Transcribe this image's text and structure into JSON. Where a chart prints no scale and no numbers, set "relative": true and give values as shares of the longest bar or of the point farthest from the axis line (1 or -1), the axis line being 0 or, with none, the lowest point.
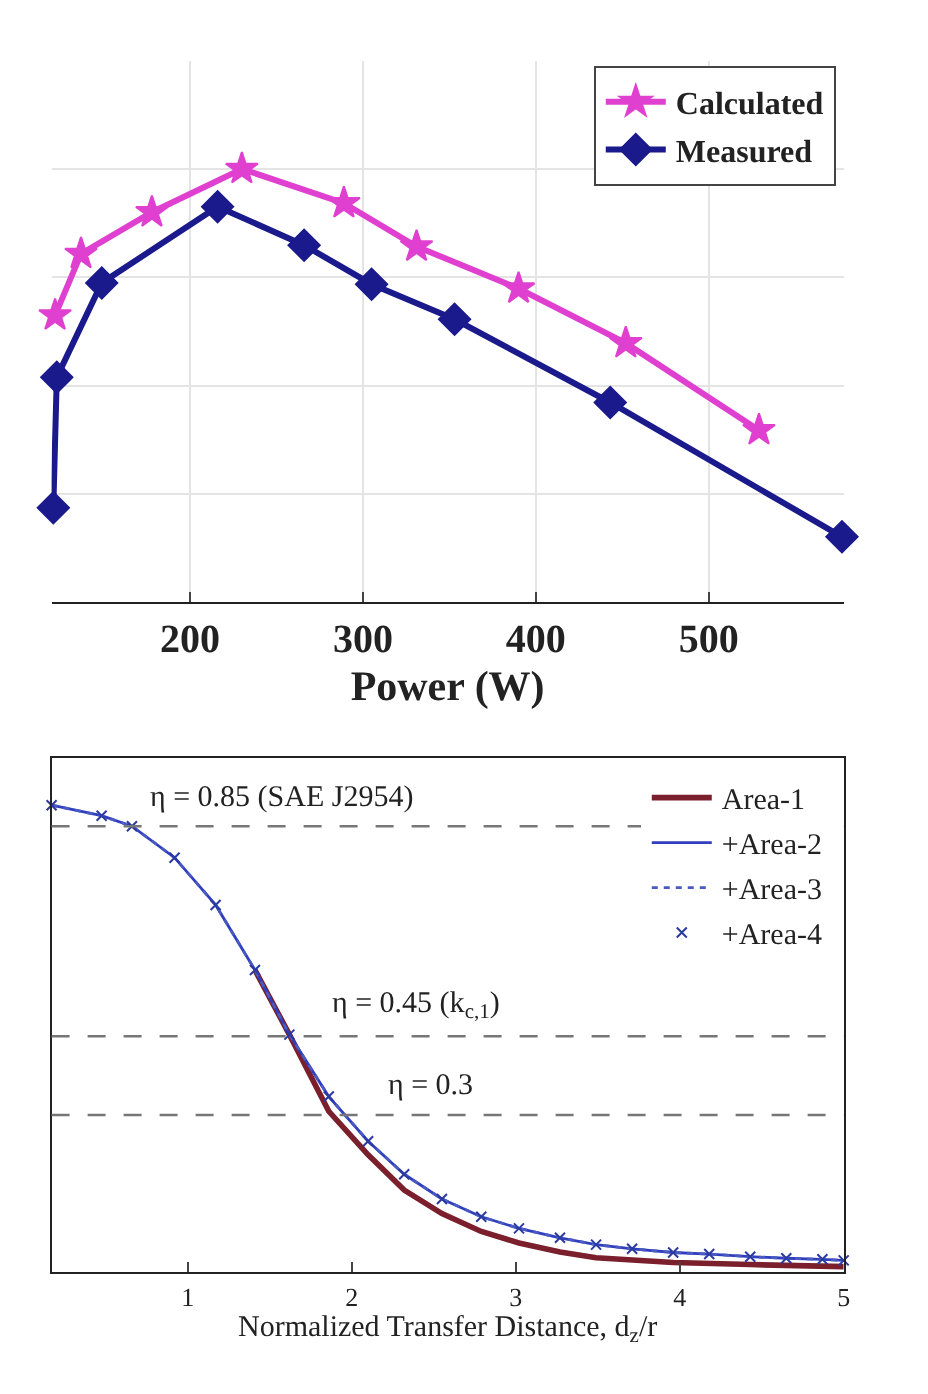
{
  "chart_data": [
    {
      "type": "line",
      "xlabel": "Power (W)",
      "relative": true,
      "xlim": [
        120,
        578
      ],
      "xticks": [
        200,
        300,
        400,
        500
      ],
      "grid": true,
      "legend": "top right",
      "tick_labels": "x",
      "series": [
        {
          "name": "Calculated",
          "color": "#e040d0",
          "marker": "star",
          "x": [
            122,
            137,
            178,
            230,
            289,
            331,
            390,
            452,
            529
          ],
          "values": [
            0.662,
            0.804,
            0.9,
            1.0,
            0.921,
            0.821,
            0.724,
            0.598,
            0.397
          ]
        },
        {
          "name": "Measured",
          "color": "#1a1a8c",
          "marker": "diamond",
          "x": [
            121,
            123,
            149,
            216,
            266,
            305,
            353,
            443,
            577
          ],
          "values": [
            0.218,
            0.519,
            0.737,
            0.913,
            0.824,
            0.734,
            0.653,
            0.461,
            0.151
          ]
        }
      ]
    },
    {
      "type": "line",
      "xlabel": "Normalized Transfer Distance, d$_{z}$/r",
      "xlim": [
        0.17,
        5
      ],
      "xticks": [
        1,
        2,
        3,
        4,
        5
      ],
      "ylim": [
        0,
        0.98
      ],
      "tick_labels": "x",
      "grid": false,
      "legend": "top right",
      "ref_lines": [
        {
          "axis": "y",
          "value": 0.85,
          "label": "η = 0.85 (SAE J2954)",
          "color": "#777777",
          "line_style": "dashed"
        },
        {
          "axis": "y",
          "value": 0.45,
          "label": "η = 0.45 (k$_{c,1}$)",
          "color": "#777777",
          "line_style": "dashed"
        },
        {
          "axis": "y",
          "value": 0.3,
          "label": "η = 0.3",
          "color": "#777777",
          "line_style": "dashed"
        }
      ],
      "series": [
        {
          "name": "Area-1",
          "color": "#7a1f2b",
          "line_style": "solid",
          "marker": "none",
          "x": [
            1.41,
            1.62,
            1.86,
            2.1,
            2.32,
            2.55,
            2.79,
            3.02,
            3.27,
            3.49,
            3.96,
            4.43,
            5
          ],
          "values": [
            0.576,
            0.453,
            0.307,
            0.224,
            0.157,
            0.112,
            0.078,
            0.056,
            0.039,
            0.028,
            0.019,
            0.015,
            0.011
          ]
        },
        {
          "name": "+Area-2",
          "color": "#2f3fbf",
          "line_style": "solid",
          "marker": "none",
          "x": [
            0.17,
            0.475,
            0.66,
            0.92,
            1.17,
            1.41,
            1.62,
            1.86,
            2.1,
            2.32,
            2.55,
            2.79,
            3.02,
            3.27,
            3.49,
            3.71,
            3.96,
            4.18,
            4.43,
            4.65,
            4.87,
            5
          ],
          "values": [
            0.89,
            0.87,
            0.85,
            0.79,
            0.7,
            0.576,
            0.453,
            0.335,
            0.25,
            0.187,
            0.14,
            0.106,
            0.084,
            0.066,
            0.053,
            0.045,
            0.038,
            0.035,
            0.03,
            0.027,
            0.025,
            0.023
          ]
        },
        {
          "name": "+Area-3",
          "color": "#4a5ac0",
          "line_style": "dotted",
          "marker": "none",
          "x": [
            0.17,
            0.475,
            0.66,
            0.92,
            1.17,
            1.41,
            1.62,
            1.86,
            2.1,
            2.32,
            2.55,
            2.79,
            3.02,
            3.27,
            3.49,
            3.71,
            3.96,
            4.18,
            4.43,
            4.65,
            4.87,
            5
          ],
          "values": [
            0.89,
            0.87,
            0.85,
            0.79,
            0.7,
            0.576,
            0.453,
            0.335,
            0.25,
            0.187,
            0.14,
            0.106,
            0.084,
            0.066,
            0.053,
            0.045,
            0.038,
            0.035,
            0.03,
            0.027,
            0.025,
            0.023
          ]
        },
        {
          "name": "+Area-4",
          "type": "scatter",
          "color": "#2a3aa0",
          "marker": "cross",
          "x": [
            0.17,
            0.475,
            0.66,
            0.92,
            1.17,
            1.41,
            1.62,
            1.86,
            2.1,
            2.32,
            2.55,
            2.79,
            3.02,
            3.27,
            3.49,
            3.71,
            3.96,
            4.18,
            4.43,
            4.65,
            4.87,
            5
          ],
          "values": [
            0.89,
            0.87,
            0.85,
            0.79,
            0.7,
            0.576,
            0.453,
            0.335,
            0.25,
            0.187,
            0.14,
            0.106,
            0.084,
            0.066,
            0.053,
            0.045,
            0.038,
            0.035,
            0.03,
            0.027,
            0.025,
            0.023
          ]
        }
      ]
    }
  ]
}
